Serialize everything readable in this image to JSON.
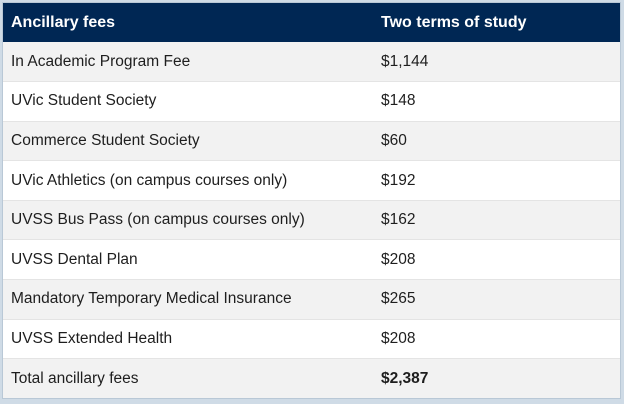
{
  "table": {
    "headers": [
      "Ancillary fees",
      "Two terms of study"
    ],
    "rows": [
      {
        "fee": "In Academic Program Fee",
        "amount": "$1,144"
      },
      {
        "fee": "UVic Student Society",
        "amount": "$148"
      },
      {
        "fee": "Commerce Student Society",
        "amount": "$60"
      },
      {
        "fee": "UVic Athletics (on campus courses only)",
        "amount": "$192"
      },
      {
        "fee": "UVSS Bus Pass (on campus courses only)",
        "amount": "$162"
      },
      {
        "fee": "UVSS Dental Plan",
        "amount": "$208"
      },
      {
        "fee": "Mandatory Temporary Medical Insurance",
        "amount": "$265"
      },
      {
        "fee": "UVSS Extended Health",
        "amount": "$208"
      }
    ],
    "total": {
      "label": "Total ancillary fees",
      "amount": "$2,387"
    }
  },
  "colors": {
    "header_bg": "#002754",
    "header_text": "#ffffff",
    "row_alt": "#f2f2f2"
  }
}
